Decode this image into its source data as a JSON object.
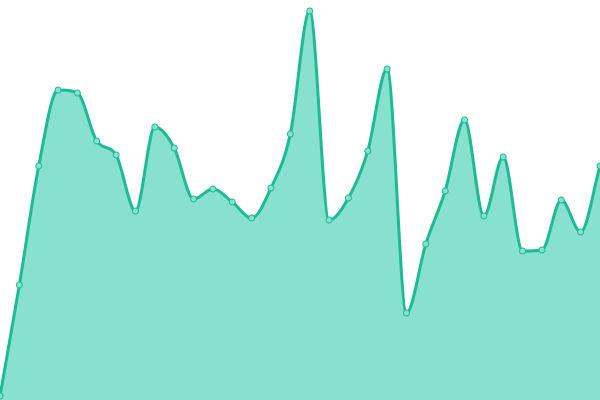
{
  "chart_data": {
    "type": "area",
    "title": "",
    "xlabel": "",
    "ylabel": "",
    "x": [
      0,
      1,
      2,
      3,
      4,
      5,
      6,
      7,
      8,
      9,
      10,
      11,
      12,
      13,
      14,
      15,
      16,
      17,
      18,
      19,
      20,
      21,
      22,
      23,
      24,
      25,
      26,
      27,
      28,
      29,
      30,
      31
    ],
    "series": [
      {
        "values": [
          4,
          115,
          234,
          310,
          307,
          259,
          245,
          189,
          273,
          252,
          201,
          211,
          198,
          182,
          212,
          266,
          389,
          180,
          202,
          249,
          331,
          87,
          156,
          209,
          280,
          184,
          243,
          149,
          150,
          200,
          168,
          234
        ]
      }
    ],
    "ylim": [
      0,
      400
    ],
    "grid": false,
    "axes_visible": false,
    "legend": "none",
    "colors": {
      "fill": "#88e0cf",
      "line": "#1dbb95",
      "marker_fill": "#88e0cf",
      "marker_stroke": "#1dbb95"
    }
  }
}
